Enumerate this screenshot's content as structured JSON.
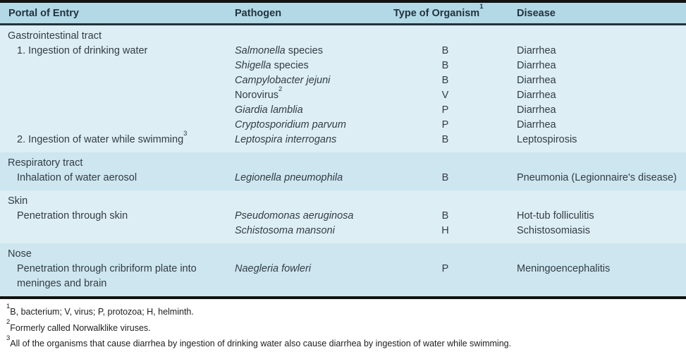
{
  "colors": {
    "header_bg": "#b3d9e7",
    "section_light_bg": "#ddeef5",
    "section_band_bg": "#cde6f0",
    "table_border": "#121212",
    "header_rule": "#22313c",
    "body_text": "#333c44",
    "footnote_text": "#1d1d1d"
  },
  "table": {
    "header": {
      "portal": "Portal of Entry",
      "pathogen": "Pathogen",
      "organism": "Type of Organism",
      "organism_sup": "1",
      "disease": "Disease"
    },
    "sections": [
      {
        "name": "Gastrointestinal tract",
        "shade": "light",
        "rows": [
          {
            "portal": "1. Ingestion of drinking water",
            "portal_sup": "",
            "pathogen": [
              {
                "t": "Salmonella",
                "i": true
              },
              {
                "t": " species",
                "i": false
              }
            ],
            "organism": "B",
            "disease": "Diarrhea"
          },
          {
            "portal": "",
            "portal_sup": "",
            "pathogen": [
              {
                "t": "Shigella",
                "i": true
              },
              {
                "t": " species",
                "i": false
              }
            ],
            "organism": "B",
            "disease": "Diarrhea"
          },
          {
            "portal": "",
            "portal_sup": "",
            "pathogen": [
              {
                "t": "Campylobacter jejuni",
                "i": true
              }
            ],
            "organism": "B",
            "disease": "Diarrhea"
          },
          {
            "portal": "",
            "portal_sup": "",
            "pathogen": [
              {
                "t": "Norovirus",
                "i": false
              },
              {
                "t": "2",
                "i": false,
                "sup": true
              }
            ],
            "organism": "V",
            "disease": "Diarrhea"
          },
          {
            "portal": "",
            "portal_sup": "",
            "pathogen": [
              {
                "t": "Giardia lamblia",
                "i": true
              }
            ],
            "organism": "P",
            "disease": "Diarrhea"
          },
          {
            "portal": "",
            "portal_sup": "",
            "pathogen": [
              {
                "t": "Cryptosporidium parvum",
                "i": true
              }
            ],
            "organism": "P",
            "disease": "Diarrhea"
          },
          {
            "portal": "2. Ingestion of water while swimming",
            "portal_sup": "3",
            "pathogen": [
              {
                "t": "Leptospira interrogans",
                "i": true
              }
            ],
            "organism": "B",
            "disease": "Leptospirosis"
          }
        ]
      },
      {
        "name": "Respiratory tract",
        "shade": "band",
        "rows": [
          {
            "portal": "Inhalation of water aerosol",
            "portal_sup": "",
            "pathogen": [
              {
                "t": "Legionella pneumophila",
                "i": true
              }
            ],
            "organism": "B",
            "disease": "Pneumonia (Legionnaire's disease)"
          }
        ]
      },
      {
        "name": "Skin",
        "shade": "light",
        "rows": [
          {
            "portal": "Penetration through skin",
            "portal_sup": "",
            "pathogen": [
              {
                "t": "Pseudomonas aeruginosa",
                "i": true
              }
            ],
            "organism": "B",
            "disease": "Hot-tub folliculitis"
          },
          {
            "portal": "",
            "portal_sup": "",
            "pathogen": [
              {
                "t": "Schistosoma mansoni",
                "i": true
              }
            ],
            "organism": "H",
            "disease": "Schistosomiasis"
          }
        ]
      },
      {
        "name": "Nose",
        "shade": "band",
        "rows": [
          {
            "portal": "Penetration through cribriform plate into meninges and brain",
            "portal_sup": "",
            "pathogen": [
              {
                "t": "Naegleria fowleri",
                "i": true
              }
            ],
            "organism": "P",
            "disease": "Meningoencephalitis"
          }
        ]
      }
    ]
  },
  "footnotes": [
    {
      "sup": "1",
      "text": "B, bacterium; V, virus; P, protozoa; H, helminth."
    },
    {
      "sup": "2",
      "text": "Formerly called Norwalklike viruses."
    },
    {
      "sup": "3",
      "text": "All of the organisms that cause diarrhea by ingestion of drinking water also cause diarrhea by ingestion of water while swimming."
    }
  ]
}
